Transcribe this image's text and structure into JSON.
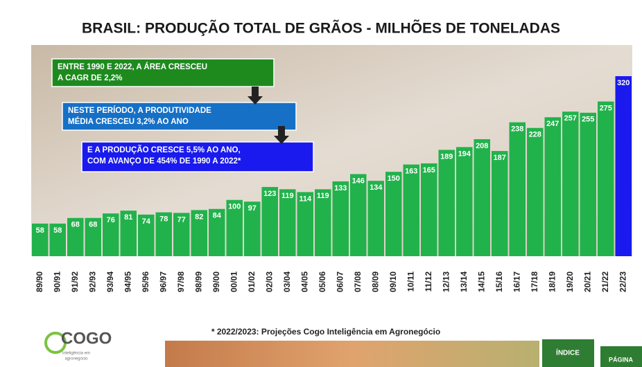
{
  "chart_data": {
    "type": "bar",
    "title": "BRASIL: PRODUÇÃO TOTAL DE GRÃOS - MILHÕES DE TONELADAS",
    "categories": [
      "89/90",
      "90/91",
      "91/92",
      "92/93",
      "93/94",
      "94/95",
      "95/96",
      "96/97",
      "97/98",
      "98/99",
      "99/00",
      "00/01",
      "01/02",
      "02/03",
      "03/04",
      "04/05",
      "05/06",
      "06/07",
      "07/08",
      "08/09",
      "09/10",
      "10/11",
      "11/12",
      "12/13",
      "13/14",
      "14/15",
      "15/16",
      "16/17",
      "17/18",
      "18/19",
      "19/20",
      "20/21",
      "21/22",
      "22/23"
    ],
    "values": [
      58,
      58,
      68,
      68,
      76,
      81,
      74,
      78,
      77,
      82,
      84,
      100,
      97,
      123,
      119,
      114,
      119,
      133,
      146,
      134,
      150,
      163,
      165,
      189,
      194,
      208,
      187,
      238,
      228,
      247,
      257,
      255,
      275,
      320
    ],
    "colors": [
      "#22b24c",
      "#22b24c",
      "#22b24c",
      "#22b24c",
      "#22b24c",
      "#22b24c",
      "#22b24c",
      "#22b24c",
      "#22b24c",
      "#22b24c",
      "#22b24c",
      "#22b24c",
      "#22b24c",
      "#22b24c",
      "#22b24c",
      "#22b24c",
      "#22b24c",
      "#22b24c",
      "#22b24c",
      "#22b24c",
      "#22b24c",
      "#22b24c",
      "#22b24c",
      "#22b24c",
      "#22b24c",
      "#22b24c",
      "#22b24c",
      "#22b24c",
      "#22b24c",
      "#22b24c",
      "#22b24c",
      "#22b24c",
      "#22b24c",
      "#1a1aee"
    ],
    "annotations": [
      [
        "ENTRE 1990 E 2022, A ÁREA CRESCEU",
        "A CAGR DE 2,2%"
      ],
      [
        "NESTE PERÍODO, A PRODUTIVIDADE",
        "MÉDIA CRESCEU 3,2% AO ANO"
      ],
      [
        "E A PRODUÇÃO CRESCE 5,5% AO ANO,",
        "COM AVANÇO DE 454% DE 1990 A 2022*"
      ]
    ],
    "footnote": "* 2022/2023: Projeções Cogo Inteligência em Agronegócio"
  },
  "logo": {
    "name": "COGO",
    "tagline": [
      "inteligência em",
      "agronegócio"
    ]
  },
  "buttons": [
    "ÍNDICE",
    "PÁGINA"
  ]
}
